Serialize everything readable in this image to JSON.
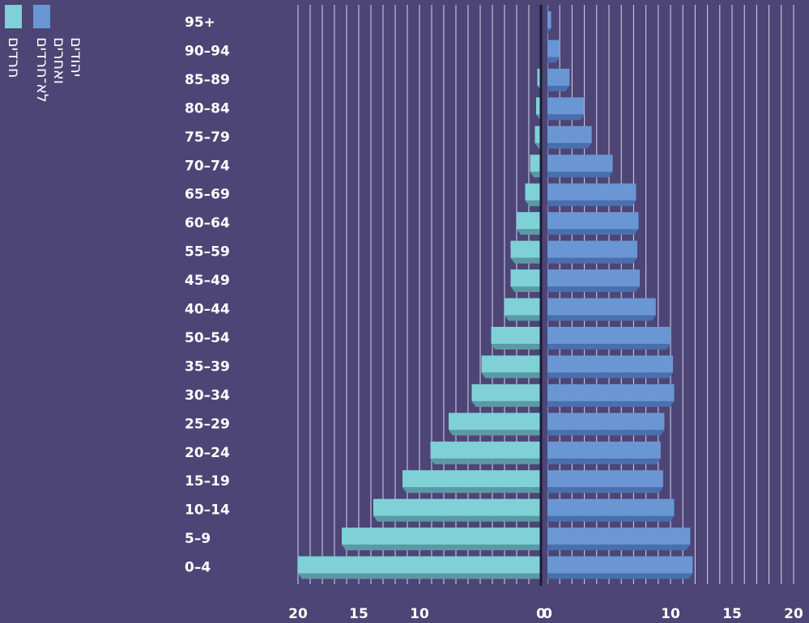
{
  "chart_data": {
    "type": "bar",
    "orientation": "horizontal-pyramid",
    "categories": [
      "0–4",
      "5–9",
      "10–14",
      "15–19",
      "20–24",
      "25–29",
      "30–34",
      "35–39",
      "50–54",
      "40–44",
      "45–49",
      "55–59",
      "60–64",
      "65–69",
      "70–74",
      "75–79",
      "80–84",
      "85–89",
      "90–94",
      "95+"
    ],
    "series": [
      {
        "name": "חרדים",
        "side": "left",
        "color": "#7fd1d7",
        "shadow_color": "#5a9aa6",
        "values": [
          20.0,
          16.4,
          13.8,
          11.4,
          9.1,
          7.6,
          5.7,
          4.9,
          4.1,
          3.0,
          2.5,
          2.5,
          2.0,
          1.3,
          0.9,
          0.5,
          0.4,
          0.3,
          0.1,
          0.1
        ]
      },
      {
        "name": "יהודים ואחרים לא־חרדים",
        "side": "right",
        "color": "#6a97d4",
        "shadow_color": "#4a6fae",
        "values": [
          11.8,
          11.6,
          10.3,
          9.4,
          9.2,
          9.5,
          10.3,
          10.2,
          10.0,
          8.8,
          7.5,
          7.3,
          7.4,
          7.2,
          5.3,
          3.6,
          3.0,
          1.8,
          1.0,
          0.3
        ]
      }
    ],
    "x_tick_labels": [
      "20",
      "15",
      "10",
      "0",
      "0",
      "10",
      "15",
      "20"
    ],
    "xlim_left": [
      0,
      20
    ],
    "xlim_right": [
      0,
      20
    ],
    "grid": "vertical",
    "legend_position": "top-left, vertical",
    "colors": {
      "background": "#4c4576",
      "grid": "#d8d5e8",
      "axis": "#ffffff"
    }
  }
}
